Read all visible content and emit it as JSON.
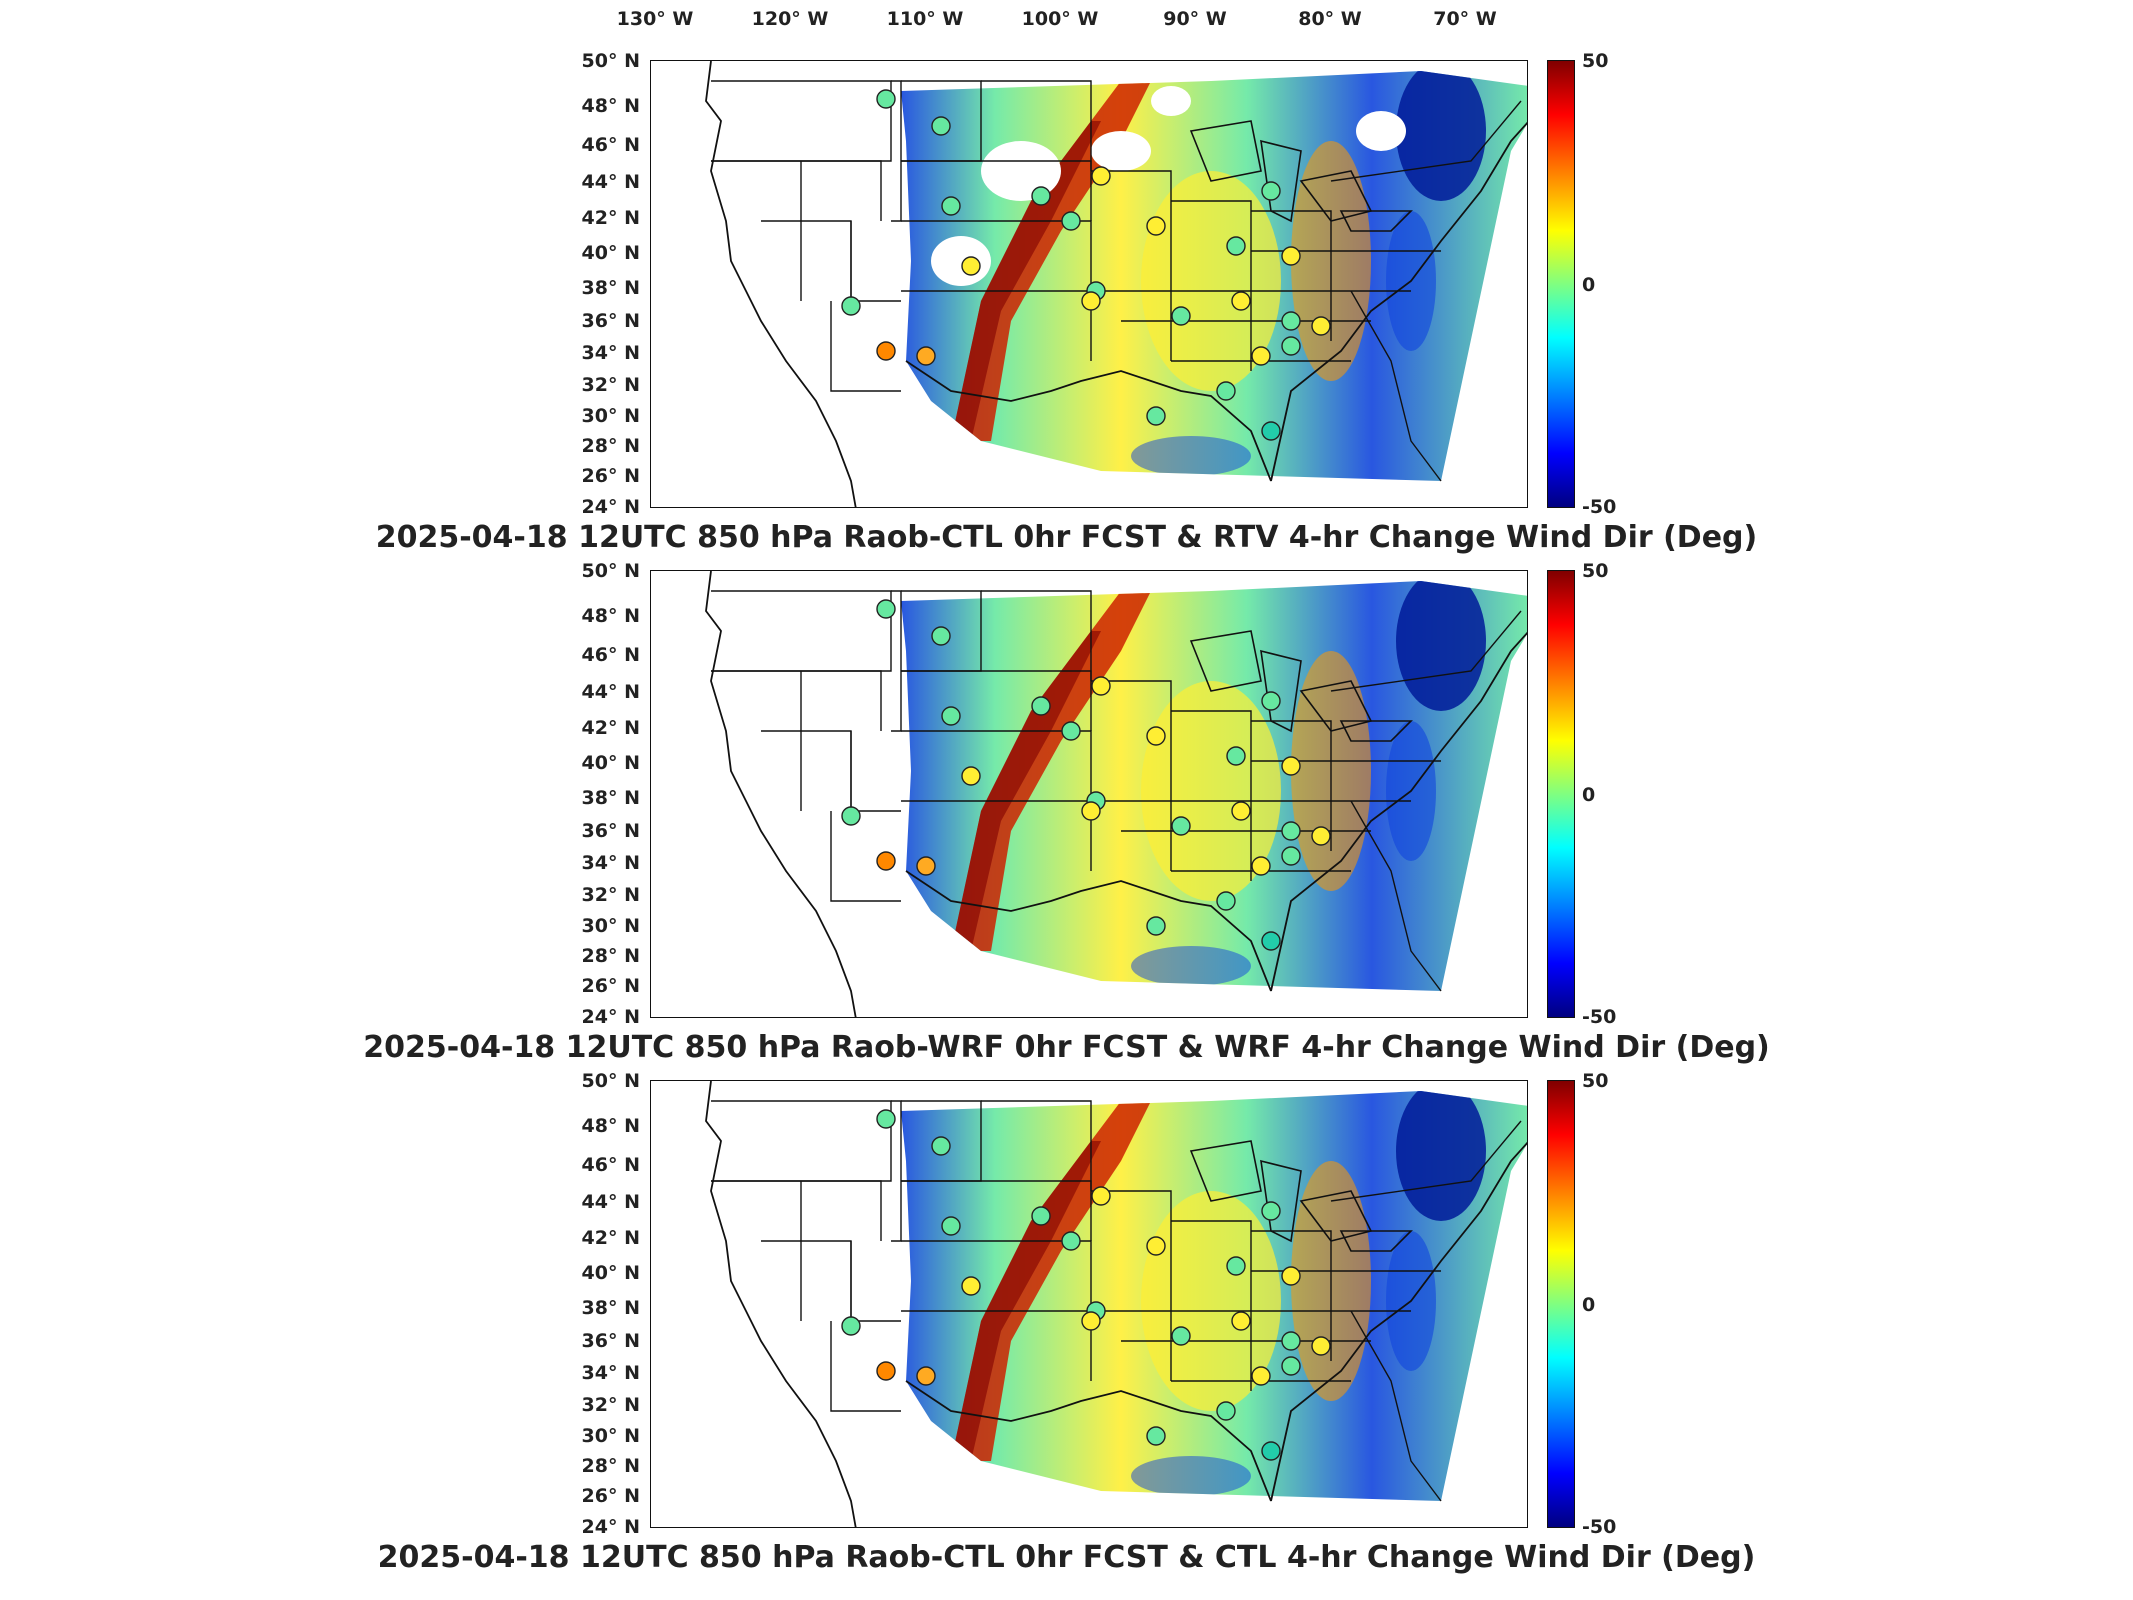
{
  "lon_ticks": [
    "130° W",
    "120° W",
    "110° W",
    "100° W",
    "90° W",
    "80° W",
    "70° W"
  ],
  "lat_ticks": [
    "50° N",
    "48° N",
    "46° N",
    "44° N",
    "42° N",
    "40° N",
    "38° N",
    "36° N",
    "34° N",
    "32° N",
    "30° N",
    "28° N",
    "26° N",
    "24° N"
  ],
  "colorbar": {
    "max": "50",
    "mid": "0",
    "min": "-50"
  },
  "panels": [
    {
      "title": "2025-04-18 12UTC 850 hPa Raob-CTL 0hr FCST & RTV 4-hr Change Wind Dir (Deg)"
    },
    {
      "title": "2025-04-18 12UTC 850 hPa Raob-WRF 0hr FCST & WRF 4-hr Change Wind Dir (Deg)"
    },
    {
      "title": "2025-04-18 12UTC 850 hPa Raob-CTL 0hr FCST & CTL 4-hr Change Wind Dir (Deg)"
    }
  ],
  "colors": {
    "field_pos": "#cc2200",
    "field_mid": "#ffee33",
    "field_zero": "#66e8a0",
    "field_neg": "#1144dd",
    "border": "#111111"
  }
}
